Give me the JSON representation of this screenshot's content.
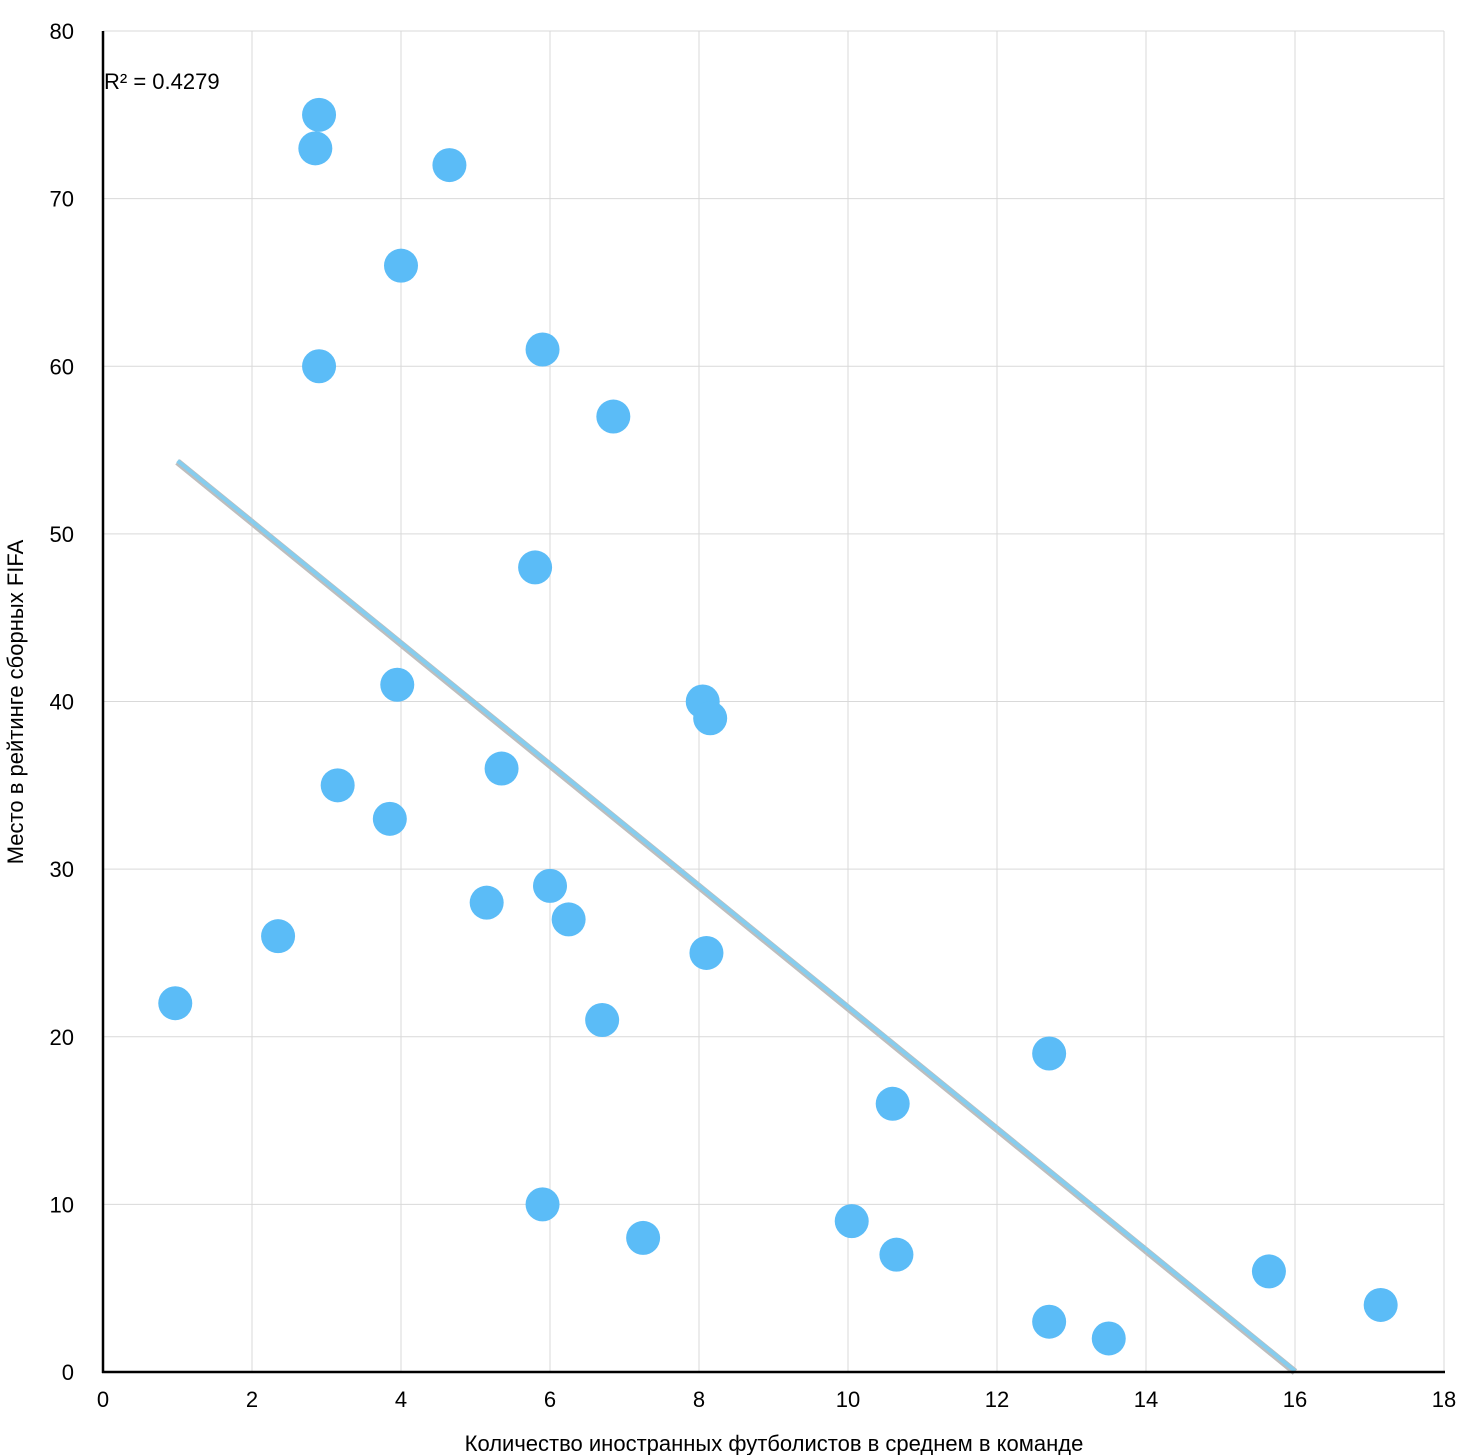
{
  "chart_data": {
    "type": "scatter",
    "title": "",
    "xlabel": "Количество иностранных футболистов в среднем в команде",
    "ylabel": "Место в рейтинге сборных FIFA",
    "xlim": [
      0,
      18
    ],
    "ylim": [
      0,
      80
    ],
    "xticks": [
      0,
      2,
      4,
      6,
      8,
      10,
      12,
      14,
      16,
      18
    ],
    "yticks": [
      0,
      10,
      20,
      30,
      40,
      50,
      60,
      70,
      80
    ],
    "grid": true,
    "legend": "none",
    "annotation": "R² = 0.4279",
    "colors": {
      "points": "#5bbcf7",
      "trendline": "#86cdee",
      "grid": "#d9d9d9",
      "axis": "#000000"
    },
    "points": [
      {
        "x": 2.9,
        "y": 75
      },
      {
        "x": 2.85,
        "y": 73
      },
      {
        "x": 4.65,
        "y": 72
      },
      {
        "x": 4.0,
        "y": 66
      },
      {
        "x": 2.9,
        "y": 60
      },
      {
        "x": 5.9,
        "y": 61
      },
      {
        "x": 6.85,
        "y": 57
      },
      {
        "x": 5.8,
        "y": 48
      },
      {
        "x": 3.95,
        "y": 41
      },
      {
        "x": 8.05,
        "y": 40
      },
      {
        "x": 8.15,
        "y": 39
      },
      {
        "x": 5.35,
        "y": 36
      },
      {
        "x": 3.15,
        "y": 35
      },
      {
        "x": 3.85,
        "y": 33
      },
      {
        "x": 6.0,
        "y": 29
      },
      {
        "x": 5.15,
        "y": 28
      },
      {
        "x": 6.25,
        "y": 27
      },
      {
        "x": 2.35,
        "y": 26
      },
      {
        "x": 8.1,
        "y": 25
      },
      {
        "x": 0.97,
        "y": 22
      },
      {
        "x": 6.7,
        "y": 21
      },
      {
        "x": 12.7,
        "y": 19
      },
      {
        "x": 10.6,
        "y": 16
      },
      {
        "x": 5.9,
        "y": 10
      },
      {
        "x": 10.05,
        "y": 9
      },
      {
        "x": 7.25,
        "y": 8
      },
      {
        "x": 10.65,
        "y": 7
      },
      {
        "x": 15.65,
        "y": 6
      },
      {
        "x": 17.15,
        "y": 4
      },
      {
        "x": 12.7,
        "y": 3
      },
      {
        "x": 13.5,
        "y": 2
      }
    ],
    "trendline": {
      "x": [
        1.0,
        16.0
      ],
      "y": [
        54.3,
        0
      ]
    }
  }
}
